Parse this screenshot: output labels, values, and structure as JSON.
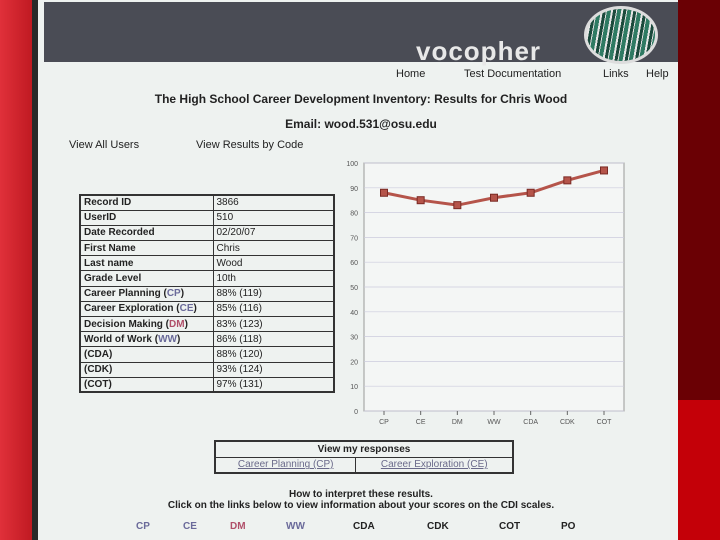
{
  "brand": "vocopher",
  "nav": [
    "Home",
    "Test Documentation",
    "Links",
    "Help"
  ],
  "title": "The High School Career Development Inventory: Results for Chris Wood",
  "email": "Email: wood.531@osu.edu",
  "links": {
    "all_users": "View All Users",
    "by_code": "View Results by Code"
  },
  "record": [
    {
      "k": "Record ID",
      "v": "3866"
    },
    {
      "k": "UserID",
      "v": "510"
    },
    {
      "k": "Date Recorded",
      "v": "02/20/07"
    },
    {
      "k": "First Name",
      "v": "Chris"
    },
    {
      "k": "Last name",
      "v": "Wood"
    },
    {
      "k": "Grade Level",
      "v": "10th"
    },
    {
      "k": "Career Planning (",
      "code": "CP",
      "v": "88% (119)"
    },
    {
      "k": "Career Exploration (",
      "code": "CE",
      "v": "85% (116)"
    },
    {
      "k": "Decision Making (",
      "code": "DM",
      "v": "83% (123)"
    },
    {
      "k": "World of Work (",
      "code": "WW",
      "v": "86% (118)"
    },
    {
      "k": "(CDA)",
      "v": "88% (120)"
    },
    {
      "k": "(CDK)",
      "v": "93% (124)"
    },
    {
      "k": "(COT)",
      "v": "97% (131)"
    }
  ],
  "chart_data": {
    "type": "line",
    "categories": [
      "CP",
      "CE",
      "DM",
      "WW",
      "CDA",
      "CDK",
      "COT"
    ],
    "values": [
      88,
      85,
      83,
      86,
      88,
      93,
      97
    ],
    "ylim": [
      0,
      100
    ],
    "yticks": [
      0,
      10,
      20,
      30,
      40,
      50,
      60,
      70,
      80,
      90,
      100
    ],
    "grid": true,
    "line_color": "#b5544a"
  },
  "responses": {
    "header": "View my responses",
    "cp": "Career Planning (CP)",
    "ce": "Career Exploration (CE)"
  },
  "interpret": {
    "line1": "How to interpret these results.",
    "line2": "Click on the links below to view information about your scores on the CDI scales."
  },
  "scales": [
    "CP",
    "CE",
    "DM",
    "WW",
    "CDA",
    "CDK",
    "COT",
    "PO"
  ]
}
